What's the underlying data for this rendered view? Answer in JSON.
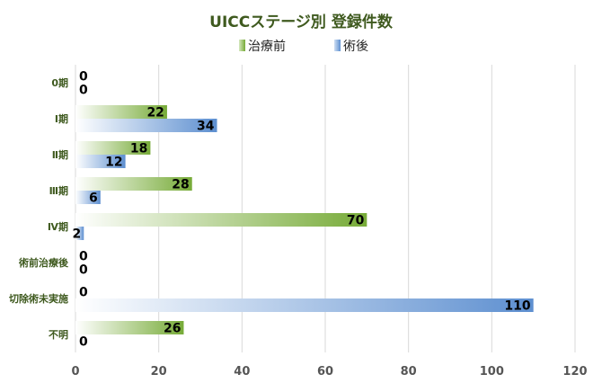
{
  "chart_data": {
    "type": "bar",
    "orientation": "horizontal",
    "title": "UICCステージ別 登録件数",
    "categories": [
      "0期",
      "Ⅰ期",
      "Ⅱ期",
      "Ⅲ期",
      "Ⅳ期",
      "術前治療後",
      "切除術未実施",
      "不明"
    ],
    "series": [
      {
        "name": "治療前",
        "values": [
          0,
          22,
          18,
          28,
          70,
          0,
          0,
          26
        ],
        "color": "#77ab38"
      },
      {
        "name": "術後",
        "values": [
          0,
          34,
          12,
          6,
          2,
          0,
          110,
          0
        ],
        "color": "#5d8fd0"
      }
    ],
    "xlim": [
      0,
      120
    ],
    "xticks": [
      0,
      20,
      40,
      60,
      80,
      100,
      120
    ],
    "grid": true,
    "legend_position": "top"
  }
}
